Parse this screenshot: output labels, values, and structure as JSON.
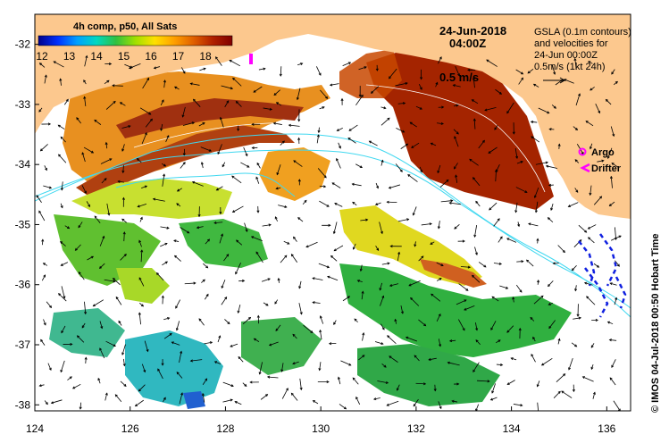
{
  "colorbar": {
    "title": "4h comp, p50, All Sats",
    "ticks": [
      "12",
      "13",
      "14",
      "15",
      "16",
      "17",
      "18"
    ],
    "colors": [
      "#00008b",
      "#0030ff",
      "#00a0ff",
      "#00d8c0",
      "#30c040",
      "#a0e000",
      "#ffe000",
      "#ffa000",
      "#e06000",
      "#b02000",
      "#800000"
    ]
  },
  "map": {
    "x_ticks": [
      "124",
      "126",
      "128",
      "130",
      "132",
      "134",
      "136"
    ],
    "y_ticks": [
      "-32",
      "-33",
      "-34",
      "-35",
      "-36",
      "-37",
      "-38"
    ],
    "x_range": [
      124,
      136.5
    ],
    "y_range": [
      -31.5,
      -38.1
    ],
    "land_color": "#fcc88e",
    "contour_color": "#40d8f0"
  },
  "date": {
    "line1": "24-Jun-2018",
    "line2": "04:00Z"
  },
  "info": {
    "line1": "GSLA (0.1m contours)",
    "line2": "and velocities for",
    "line3": "24-Jun 00:00Z",
    "line4": "0.5m/s (1kt 24h)"
  },
  "scale_label": "0.5 m/s",
  "legend": {
    "argo": "Argo",
    "drifter": "Drifter",
    "argo_color": "#ff00ff",
    "drifter_color": "#ff00ff"
  },
  "credit": "© IMOS 04-Jul-2018 00:50 Hobart Time"
}
